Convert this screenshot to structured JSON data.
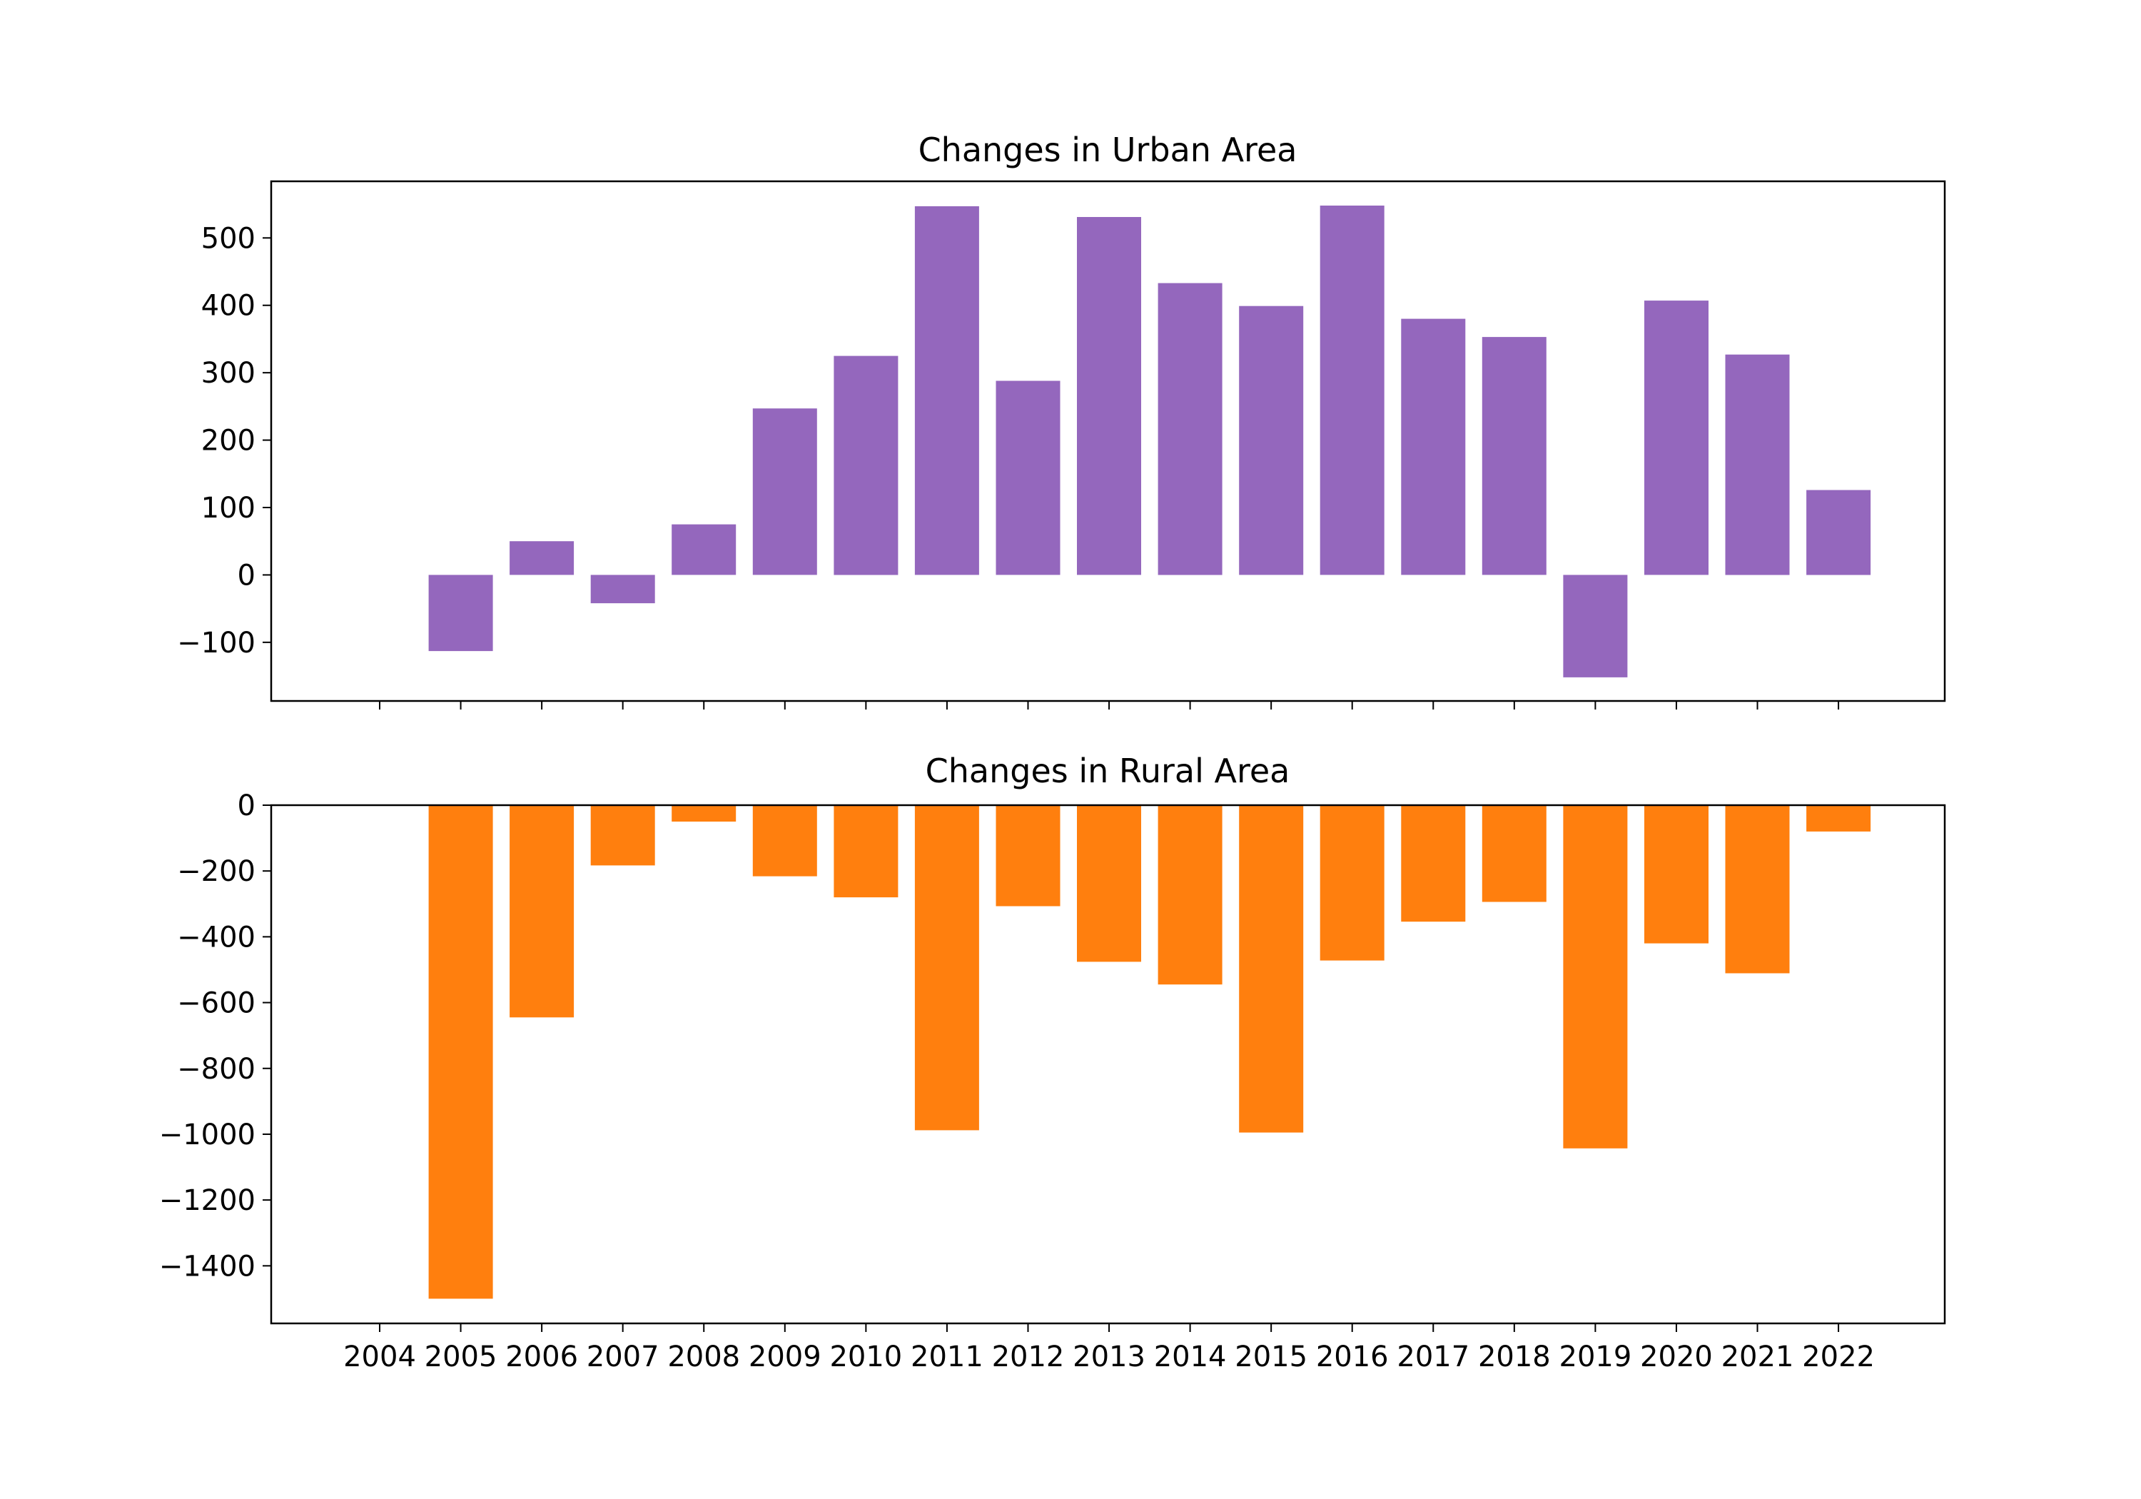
{
  "chart_data": [
    {
      "type": "bar",
      "title": "Changes in Urban Area",
      "xlabel": "",
      "ylabel": "",
      "categories": [
        "2004",
        "2005",
        "2006",
        "2007",
        "2008",
        "2009",
        "2010",
        "2011",
        "2012",
        "2013",
        "2014",
        "2015",
        "2016",
        "2017",
        "2018",
        "2019",
        "2020",
        "2021",
        "2022"
      ],
      "values": [
        null,
        -113,
        50,
        -42,
        75,
        247,
        325,
        547,
        288,
        531,
        433,
        399,
        548,
        380,
        353,
        -152,
        407,
        327,
        126
      ],
      "ylim": [
        -187,
        584
      ],
      "yticks": [
        -100,
        0,
        100,
        200,
        300,
        400,
        500
      ],
      "ytick_labels": [
        "−100",
        "0",
        "100",
        "200",
        "300",
        "400",
        "500"
      ],
      "color": "#9467bd",
      "grid": false
    },
    {
      "type": "bar",
      "title": "Changes in Rural Area",
      "xlabel": "",
      "ylabel": "",
      "categories": [
        "2004",
        "2005",
        "2006",
        "2007",
        "2008",
        "2009",
        "2010",
        "2011",
        "2012",
        "2013",
        "2014",
        "2015",
        "2016",
        "2017",
        "2018",
        "2019",
        "2020",
        "2021",
        "2022"
      ],
      "values": [
        null,
        -1500,
        -645,
        -183,
        -50,
        -216,
        -280,
        -988,
        -307,
        -476,
        -545,
        -995,
        -472,
        -354,
        -294,
        -1043,
        -420,
        -511,
        -80
      ],
      "ylim": [
        -1575,
        0
      ],
      "yticks": [
        -1400,
        -1200,
        -1000,
        -800,
        -600,
        -400,
        -200,
        0
      ],
      "ytick_labels": [
        "−1400",
        "−1200",
        "−1000",
        "−800",
        "−600",
        "−400",
        "−200",
        "0"
      ],
      "color": "#ff7f0e",
      "grid": false
    }
  ],
  "shared_x": {
    "tick_labels": [
      "2004",
      "2005",
      "2006",
      "2007",
      "2008",
      "2009",
      "2010",
      "2011",
      "2012",
      "2013",
      "2014",
      "2015",
      "2016",
      "2017",
      "2018",
      "2019",
      "2020",
      "2021",
      "2022"
    ]
  }
}
